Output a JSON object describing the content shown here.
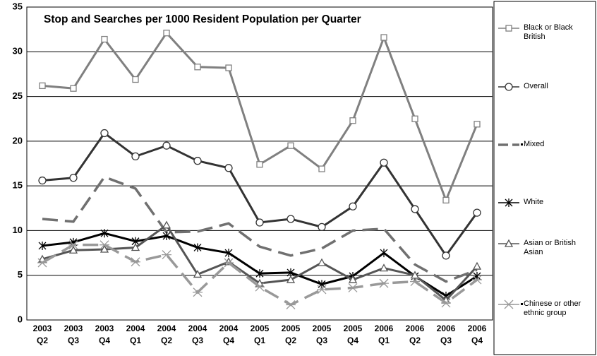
{
  "chart_data": {
    "type": "line",
    "title": "Stop and Searches per 1000 Resident Population per Quarter",
    "categories": [
      "2003 Q2",
      "2003 Q3",
      "2003 Q4",
      "2004 Q1",
      "2004 Q2",
      "2004 Q3",
      "2004 Q4",
      "2005 Q1",
      "2005 Q2",
      "2005 Q3",
      "2005 Q4",
      "2006 Q1",
      "2006 Q2",
      "2006 Q3",
      "2006 Q4"
    ],
    "series": [
      {
        "name": "Black or Black British",
        "color": "#808080",
        "marker": "square",
        "dash": false,
        "values": [
          26.2,
          25.9,
          31.4,
          26.9,
          32.1,
          28.3,
          28.2,
          17.4,
          19.5,
          16.9,
          22.3,
          31.6,
          22.5,
          13.4,
          21.9
        ]
      },
      {
        "name": "Overall",
        "color": "#333333",
        "marker": "circle",
        "dash": false,
        "values": [
          15.6,
          15.9,
          20.9,
          18.3,
          19.5,
          17.8,
          17.0,
          10.9,
          11.3,
          10.4,
          12.7,
          17.6,
          12.4,
          7.2,
          12.0
        ]
      },
      {
        "name": "Mixed",
        "color": "#707070",
        "marker": "none",
        "dash": true,
        "values": [
          11.3,
          11.0,
          16.0,
          14.7,
          9.8,
          9.9,
          10.8,
          8.2,
          7.2,
          8.0,
          10.0,
          10.2,
          6.2,
          4.3,
          5.6
        ]
      },
      {
        "name": "White",
        "color": "#000000",
        "marker": "asterisk",
        "dash": false,
        "values": [
          8.3,
          8.7,
          9.7,
          8.8,
          9.4,
          8.1,
          7.5,
          5.2,
          5.3,
          4.0,
          4.9,
          7.5,
          4.9,
          2.7,
          4.9
        ]
      },
      {
        "name": "Asian or British Asian",
        "color": "#555555",
        "marker": "triangle",
        "dash": false,
        "values": [
          6.8,
          7.8,
          7.9,
          8.1,
          10.6,
          5.1,
          6.5,
          4.1,
          4.5,
          6.4,
          4.5,
          5.8,
          5.0,
          2.2,
          6.0
        ]
      },
      {
        "name": "Chinese or other ethnic group",
        "color": "#999999",
        "marker": "star",
        "dash": true,
        "values": [
          6.4,
          8.4,
          8.4,
          6.5,
          7.3,
          3.1,
          6.4,
          3.7,
          1.7,
          3.4,
          3.6,
          4.1,
          4.3,
          1.9,
          4.5
        ]
      }
    ],
    "ylim": [
      0,
      35
    ],
    "yticks": [
      0,
      5,
      10,
      15,
      20,
      25,
      30,
      35
    ],
    "grid": true,
    "legend": "right"
  }
}
